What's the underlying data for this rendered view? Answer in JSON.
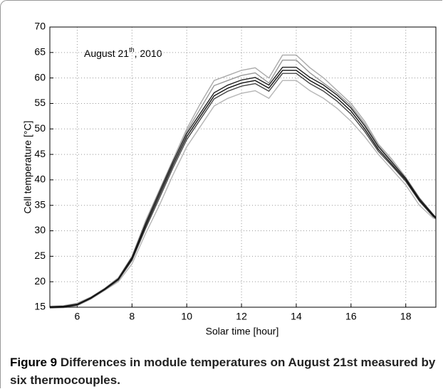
{
  "chart_data": {
    "type": "line",
    "annotation": {
      "text": "August 21",
      "superscript": "th",
      "suffix": ", 2010"
    },
    "xlabel": "Solar time [hour]",
    "ylabel": "Cell temperature [°C]",
    "x": [
      5.0,
      5.5,
      6.0,
      6.5,
      7.0,
      7.5,
      8.0,
      8.5,
      9.0,
      9.5,
      10.0,
      10.5,
      11.0,
      11.5,
      12.0,
      12.5,
      13.0,
      13.5,
      14.0,
      14.5,
      15.0,
      15.5,
      16.0,
      16.5,
      17.0,
      17.5,
      18.0,
      18.5,
      19.0,
      19.1
    ],
    "series": [
      {
        "color": "#111111",
        "values": [
          15.0,
          15.1,
          15.5,
          16.8,
          18.5,
          20.5,
          24.5,
          31.0,
          37.0,
          43.0,
          48.5,
          52.5,
          56.5,
          58.0,
          59.0,
          59.5,
          58.0,
          61.5,
          61.5,
          59.5,
          58.0,
          56.0,
          53.5,
          50.0,
          46.0,
          43.0,
          40.0,
          36.0,
          33.0,
          32.5
        ]
      },
      {
        "color": "#222222",
        "values": [
          15.1,
          15.2,
          15.6,
          16.9,
          18.6,
          20.6,
          24.8,
          31.5,
          37.6,
          43.6,
          49.1,
          53.1,
          57.1,
          58.6,
          59.6,
          60.1,
          58.6,
          62.1,
          62.1,
          60.1,
          58.6,
          56.6,
          54.1,
          50.6,
          46.5,
          43.4,
          40.3,
          36.3,
          33.2,
          32.6
        ]
      },
      {
        "color": "#444444",
        "values": [
          14.9,
          15.0,
          15.4,
          16.7,
          18.4,
          20.3,
          24.2,
          30.5,
          36.4,
          42.4,
          47.9,
          51.9,
          55.9,
          57.4,
          58.4,
          58.9,
          57.4,
          60.9,
          60.9,
          58.9,
          57.4,
          55.4,
          52.9,
          49.5,
          45.6,
          42.7,
          39.7,
          35.8,
          32.8,
          32.4
        ]
      },
      {
        "color": "#aaaaaa",
        "values": [
          15.2,
          15.3,
          15.8,
          17.0,
          18.7,
          20.8,
          25.0,
          32.0,
          38.0,
          44.0,
          50.0,
          55.0,
          59.5,
          60.5,
          61.5,
          62.0,
          60.0,
          64.5,
          64.5,
          62.0,
          60.0,
          57.5,
          55.0,
          51.5,
          47.0,
          44.0,
          40.5,
          36.5,
          33.2,
          32.7
        ]
      },
      {
        "color": "#999999",
        "values": [
          15.1,
          15.2,
          15.7,
          16.9,
          18.6,
          20.7,
          24.8,
          31.6,
          37.5,
          43.5,
          49.5,
          54.0,
          58.5,
          59.5,
          60.5,
          61.0,
          59.0,
          63.5,
          63.5,
          61.0,
          59.0,
          57.0,
          54.5,
          51.0,
          46.7,
          43.6,
          40.2,
          36.2,
          33.0,
          32.5
        ]
      },
      {
        "color": "#b5b5b5",
        "values": [
          14.8,
          14.9,
          15.3,
          16.6,
          18.3,
          20.0,
          23.5,
          29.5,
          35.0,
          41.0,
          46.5,
          50.5,
          54.5,
          56.0,
          57.0,
          57.5,
          56.0,
          59.5,
          59.5,
          57.5,
          56.0,
          54.0,
          51.5,
          48.5,
          45.0,
          42.0,
          39.0,
          35.0,
          32.5,
          32.3
        ]
      }
    ],
    "xlim": [
      5,
      19.1
    ],
    "ylim": [
      15,
      70
    ],
    "xticks": [
      6,
      8,
      10,
      12,
      14,
      16,
      18
    ],
    "yticks": [
      15,
      20,
      25,
      30,
      35,
      40,
      45,
      50,
      55,
      60,
      65,
      70
    ],
    "grid": true
  },
  "caption": {
    "label": "Figure 9",
    "text": "Differences in module temperatures on August 21st measured by six thermocouples."
  }
}
